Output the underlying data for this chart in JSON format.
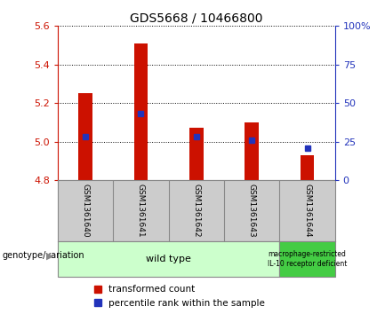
{
  "title": "GDS5668 / 10466800",
  "samples": [
    "GSM1361640",
    "GSM1361641",
    "GSM1361642",
    "GSM1361643",
    "GSM1361644"
  ],
  "transformed_counts": [
    5.25,
    5.51,
    5.07,
    5.1,
    4.93
  ],
  "percentile_ranks": [
    28,
    43,
    28,
    26,
    21
  ],
  "ylim_left": [
    4.8,
    5.6
  ],
  "ylim_right": [
    0,
    100
  ],
  "yticks_left": [
    4.8,
    5.0,
    5.2,
    5.4,
    5.6
  ],
  "yticks_right": [
    0,
    25,
    50,
    75,
    100
  ],
  "bar_color": "#cc1100",
  "dot_color": "#2233bb",
  "baseline": 4.8,
  "bar_width": 0.25,
  "group1_label": "wild type",
  "group1_color": "#ccffcc",
  "group1_count": 4,
  "group2_label": "macrophage-restricted\nIL-10 receptor deficient",
  "group2_color": "#44cc44",
  "group2_count": 1,
  "legend_items": [
    {
      "color": "#cc1100",
      "label": "transformed count"
    },
    {
      "color": "#2233bb",
      "label": "percentile rank within the sample"
    }
  ],
  "genotype_label": "genotype/variation",
  "background_color": "#ffffff",
  "plot_bg": "#ffffff",
  "tick_color_left": "#cc1100",
  "tick_color_right": "#2233bb",
  "sample_box_color": "#cccccc",
  "sample_box_edge": "#888888"
}
